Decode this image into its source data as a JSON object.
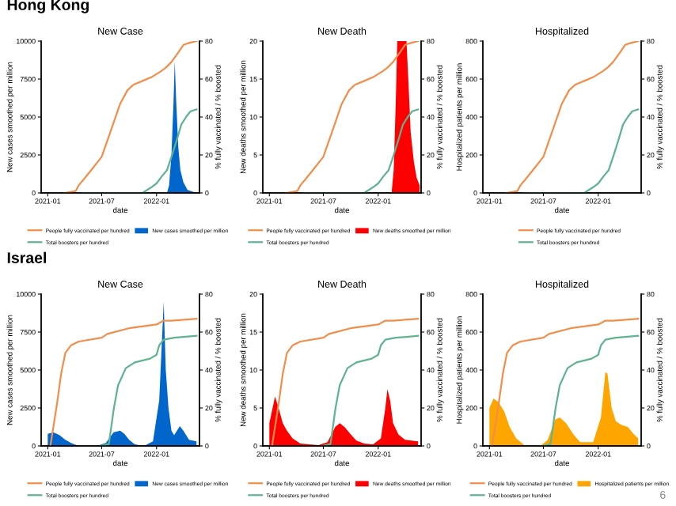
{
  "chart_data": [
    {
      "type": "area",
      "title": "New Case",
      "annotations": [
        "Hong Kong"
      ],
      "xlabel": "date",
      "ylabel": "New cases smoothed per million",
      "y2label": "% fully vaccinated / % boosted",
      "xlim": [
        "2020-12-10",
        "2022-05-25"
      ],
      "xticks": [
        "2021-01",
        "2021-07",
        "2022-01"
      ],
      "ylim": [
        0,
        10000
      ],
      "yticks": [
        0,
        2500,
        5000,
        7500,
        10000
      ],
      "y2lim": [
        0,
        80
      ],
      "y2ticks": [
        0,
        20,
        40,
        60,
        80
      ],
      "legend": "bottom",
      "grid": false,
      "series": [
        {
          "name": "New cases smoothed per million",
          "color": "#0066cc",
          "x": [
            "2021-01-01",
            "2022-02-05",
            "2022-02-12",
            "2022-02-20",
            "2022-02-27",
            "2022-03-03",
            "2022-03-08",
            "2022-03-15",
            "2022-03-22",
            "2022-04-01",
            "2022-04-15",
            "2022-05-15"
          ],
          "values": [
            0,
            0,
            500,
            2500,
            6000,
            8700,
            6000,
            3000,
            1500,
            700,
            200,
            0
          ]
        },
        {
          "name": "People fully vaccinated per hundred",
          "type": "line",
          "axis": "y2",
          "color": "#f28e4b",
          "x": [
            "2021-02-26",
            "2021-04-05",
            "2021-04-15",
            "2021-05-01",
            "2021-06-01",
            "2021-07-01",
            "2021-08-01",
            "2021-09-01",
            "2021-09-25",
            "2021-10-15",
            "2021-11-15",
            "2021-12-15",
            "2022-01-15",
            "2022-02-01",
            "2022-02-20",
            "2022-03-15",
            "2022-04-01",
            "2022-04-20",
            "2022-05-15"
          ],
          "values": [
            0,
            1,
            4,
            7,
            13,
            19,
            33,
            47,
            54,
            57,
            59,
            61,
            64,
            66,
            69,
            74,
            78,
            79,
            80
          ]
        },
        {
          "name": "Total boosters per hundred",
          "type": "line",
          "axis": "y2",
          "color": "#5fb38f",
          "x": [
            "2021-04-25",
            "2021-11-15",
            "2021-12-15",
            "2022-01-01",
            "2022-01-20",
            "2022-02-05",
            "2022-02-20",
            "2022-03-10",
            "2022-03-25",
            "2022-04-10",
            "2022-04-25",
            "2022-05-15"
          ],
          "values": [
            0,
            0,
            3,
            5,
            9,
            12,
            19,
            28,
            36,
            40,
            43,
            44
          ]
        }
      ]
    },
    {
      "type": "area",
      "title": "New Death",
      "xlabel": "date",
      "ylabel": "New deaths smoothed per million",
      "y2label": "% fully vaccinated / % boosted",
      "xlim": [
        "2020-12-10",
        "2022-05-25"
      ],
      "xticks": [
        "2021-01",
        "2021-07",
        "2022-01"
      ],
      "ylim": [
        0,
        20
      ],
      "yticks": [
        0,
        5,
        10,
        15,
        20
      ],
      "y2lim": [
        0,
        80
      ],
      "y2ticks": [
        0,
        20,
        40,
        60,
        80
      ],
      "legend": "bottom",
      "grid": false,
      "series": [
        {
          "name": "New deaths smoothed per million",
          "color": "#ff0000",
          "x": [
            "2021-01-01",
            "2022-02-15",
            "2022-02-22",
            "2022-03-01",
            "2022-03-06",
            "2022-04-06",
            "2022-04-12",
            "2022-04-20",
            "2022-05-01",
            "2022-05-10",
            "2022-05-20"
          ],
          "values": [
            0,
            0,
            3,
            12,
            20,
            20,
            15,
            8,
            4,
            2,
            1
          ]
        },
        {
          "name": "People fully vaccinated per hundred",
          "type": "line",
          "axis": "y2",
          "color": "#f28e4b",
          "x": [
            "2021-02-26",
            "2021-04-05",
            "2021-04-15",
            "2021-05-01",
            "2021-06-01",
            "2021-07-01",
            "2021-08-01",
            "2021-09-01",
            "2021-09-25",
            "2021-10-15",
            "2021-11-15",
            "2021-12-15",
            "2022-01-15",
            "2022-02-01",
            "2022-02-20",
            "2022-03-15",
            "2022-04-01",
            "2022-04-20",
            "2022-05-15"
          ],
          "values": [
            0,
            1,
            4,
            7,
            13,
            19,
            33,
            47,
            54,
            57,
            59,
            61,
            64,
            66,
            69,
            74,
            78,
            79,
            80
          ]
        },
        {
          "name": "Total boosters per hundred",
          "type": "line",
          "axis": "y2",
          "color": "#5fb38f",
          "x": [
            "2021-04-25",
            "2021-11-15",
            "2021-12-15",
            "2022-01-01",
            "2022-01-20",
            "2022-02-05",
            "2022-02-20",
            "2022-03-10",
            "2022-03-25",
            "2022-04-10",
            "2022-04-25",
            "2022-05-15"
          ],
          "values": [
            0,
            0,
            3,
            5,
            9,
            12,
            19,
            28,
            36,
            40,
            43,
            44
          ]
        }
      ]
    },
    {
      "type": "line",
      "title": "Hospitalized",
      "xlabel": "date",
      "ylabel": "Hospitalized patients per million",
      "y2label": "% fully vaccinated / % boosted",
      "xlim": [
        "2020-12-10",
        "2022-05-25"
      ],
      "xticks": [
        "2021-01",
        "2021-07",
        "2022-01"
      ],
      "ylim": [
        0,
        800
      ],
      "yticks": [
        0,
        200,
        400,
        600,
        800
      ],
      "y2lim": [
        0,
        80
      ],
      "y2ticks": [
        0,
        20,
        40,
        60,
        80
      ],
      "legend": "bottom",
      "grid": false,
      "series": [
        {
          "name": "People fully vaccinated per hundred",
          "axis": "y2",
          "color": "#f28e4b",
          "x": [
            "2021-02-26",
            "2021-04-05",
            "2021-04-15",
            "2021-05-01",
            "2021-06-01",
            "2021-07-01",
            "2021-08-01",
            "2021-09-01",
            "2021-09-25",
            "2021-10-15",
            "2021-11-15",
            "2021-12-15",
            "2022-01-15",
            "2022-02-01",
            "2022-02-20",
            "2022-03-15",
            "2022-04-01",
            "2022-04-20",
            "2022-05-15"
          ],
          "values": [
            0,
            1,
            4,
            7,
            13,
            19,
            33,
            47,
            54,
            57,
            59,
            61,
            64,
            66,
            69,
            74,
            78,
            79,
            80
          ]
        },
        {
          "name": "Total boosters per hundred",
          "axis": "y2",
          "color": "#5fb38f",
          "x": [
            "2021-04-25",
            "2021-11-15",
            "2021-12-15",
            "2022-01-01",
            "2022-01-20",
            "2022-02-05",
            "2022-02-20",
            "2022-03-10",
            "2022-03-25",
            "2022-04-10",
            "2022-04-25",
            "2022-05-15"
          ],
          "values": [
            0,
            0,
            3,
            5,
            9,
            12,
            19,
            28,
            36,
            40,
            43,
            44
          ]
        }
      ]
    },
    {
      "type": "area",
      "title": "New Case",
      "annotations": [
        "Israel"
      ],
      "xlabel": "date",
      "ylabel": "New cases smoothed per million",
      "y2label": "% fully vaccinated / % boosted",
      "xlim": [
        "2020-12-10",
        "2022-05-25"
      ],
      "xticks": [
        "2021-01",
        "2021-07",
        "2022-01"
      ],
      "ylim": [
        0,
        10000
      ],
      "yticks": [
        0,
        2500,
        5000,
        7500,
        10000
      ],
      "y2lim": [
        0,
        80
      ],
      "y2ticks": [
        0,
        20,
        40,
        60,
        80
      ],
      "legend": "bottom",
      "grid": false,
      "series": [
        {
          "name": "New cases smoothed per million",
          "color": "#0066cc",
          "x": [
            "2021-01-01",
            "2021-01-20",
            "2021-02-10",
            "2021-03-01",
            "2021-03-20",
            "2021-04-15",
            "2021-06-15",
            "2021-07-15",
            "2021-08-10",
            "2021-09-01",
            "2021-09-15",
            "2021-10-01",
            "2021-10-20",
            "2021-11-20",
            "2021-12-20",
            "2022-01-10",
            "2022-01-25",
            "2022-02-01",
            "2022-02-10",
            "2022-02-20",
            "2022-03-01",
            "2022-03-20",
            "2022-04-01",
            "2022-04-20",
            "2022-05-15"
          ],
          "values": [
            800,
            900,
            700,
            400,
            200,
            0,
            0,
            200,
            900,
            1000,
            800,
            400,
            100,
            0,
            300,
            3000,
            9500,
            5000,
            2500,
            1000,
            700,
            1300,
            1000,
            400,
            300
          ]
        },
        {
          "name": "People fully vaccinated per hundred",
          "type": "line",
          "axis": "y2",
          "color": "#f28e4b",
          "x": [
            "2021-01-10",
            "2021-01-31",
            "2021-02-15",
            "2021-03-01",
            "2021-03-20",
            "2021-04-15",
            "2021-07-01",
            "2021-07-20",
            "2021-09-30",
            "2022-01-01",
            "2022-01-25",
            "2022-02-20",
            "2022-05-15"
          ],
          "values": [
            0,
            21,
            38,
            49,
            53,
            55,
            57,
            59,
            62,
            64,
            66,
            66,
            67
          ]
        },
        {
          "name": "Total boosters per hundred",
          "type": "line",
          "axis": "y2",
          "color": "#5fb38f",
          "x": [
            "2021-06-28",
            "2021-07-25",
            "2021-08-11",
            "2021-08-25",
            "2021-09-20",
            "2021-10-20",
            "2021-12-10",
            "2022-01-01",
            "2022-01-10",
            "2022-01-25",
            "2022-03-01",
            "2022-05-15"
          ],
          "values": [
            0,
            1,
            20,
            32,
            41,
            44,
            46,
            48,
            53,
            56,
            57,
            58
          ]
        }
      ]
    },
    {
      "type": "area",
      "title": "New Death",
      "xlabel": "date",
      "ylabel": "New deaths smoothed per million",
      "y2label": "% fully vaccinated / % boosted",
      "xlim": [
        "2020-12-10",
        "2022-05-25"
      ],
      "xticks": [
        "2021-01",
        "2021-07",
        "2022-01"
      ],
      "ylim": [
        0,
        20
      ],
      "yticks": [
        0,
        5,
        10,
        15,
        20
      ],
      "y2lim": [
        0,
        80
      ],
      "y2ticks": [
        0,
        20,
        40,
        60,
        80
      ],
      "legend": "bottom",
      "grid": false,
      "series": [
        {
          "name": "New deaths smoothed per million",
          "color": "#ff0000",
          "x": [
            "2021-01-01",
            "2021-01-20",
            "2021-02-01",
            "2021-02-15",
            "2021-03-01",
            "2021-03-20",
            "2021-04-15",
            "2021-06-15",
            "2021-07-15",
            "2021-08-10",
            "2021-08-25",
            "2021-09-10",
            "2021-10-01",
            "2021-10-20",
            "2021-11-15",
            "2021-12-15",
            "2022-01-10",
            "2022-01-25",
            "2022-02-01",
            "2022-02-10",
            "2022-02-20",
            "2022-03-10",
            "2022-04-01",
            "2022-05-15"
          ],
          "values": [
            3,
            6.5,
            5,
            3,
            2,
            1,
            0.3,
            0.1,
            0.5,
            2.5,
            3,
            2.5,
            1.5,
            0.7,
            0.3,
            0.2,
            1,
            5,
            7.5,
            6,
            3,
            1.5,
            0.8,
            0.6
          ]
        },
        {
          "name": "People fully vaccinated per hundred",
          "type": "line",
          "axis": "y2",
          "color": "#f28e4b",
          "x": [
            "2021-01-10",
            "2021-01-31",
            "2021-02-15",
            "2021-03-01",
            "2021-03-20",
            "2021-04-15",
            "2021-07-01",
            "2021-07-20",
            "2021-09-30",
            "2022-01-01",
            "2022-01-25",
            "2022-02-20",
            "2022-05-15"
          ],
          "values": [
            0,
            21,
            38,
            49,
            53,
            55,
            57,
            59,
            62,
            64,
            66,
            66,
            67
          ]
        },
        {
          "name": "Total boosters per hundred",
          "type": "line",
          "axis": "y2",
          "color": "#5fb38f",
          "x": [
            "2021-06-28",
            "2021-07-25",
            "2021-08-11",
            "2021-08-25",
            "2021-09-20",
            "2021-10-20",
            "2021-12-10",
            "2022-01-01",
            "2022-01-10",
            "2022-01-25",
            "2022-03-01",
            "2022-05-15"
          ],
          "values": [
            0,
            1,
            20,
            32,
            41,
            44,
            46,
            48,
            53,
            56,
            57,
            58
          ]
        }
      ]
    },
    {
      "type": "area",
      "title": "Hospitalized",
      "annotations": [
        "6"
      ],
      "xlabel": "date",
      "ylabel": "Hospitalized patients per million",
      "y2label": "% fully vaccinated / % boosted",
      "xlim": [
        "2020-12-10",
        "2022-05-25"
      ],
      "xticks": [
        "2021-01",
        "2021-07",
        "2022-01"
      ],
      "ylim": [
        0,
        800
      ],
      "yticks": [
        0,
        200,
        400,
        600,
        800
      ],
      "y2lim": [
        0,
        80
      ],
      "y2ticks": [
        0,
        20,
        40,
        60,
        80
      ],
      "legend": "bottom",
      "grid": false,
      "series": [
        {
          "name": "Hospitalized patients per million",
          "color": "#ffa500",
          "x": [
            "2021-01-01",
            "2021-01-15",
            "2021-02-01",
            "2021-02-20",
            "2021-03-10",
            "2021-04-01",
            "2021-05-01",
            "2021-06-20",
            "2021-07-15",
            "2021-08-10",
            "2021-08-25",
            "2021-09-15",
            "2021-10-10",
            "2021-11-01",
            "2021-12-15",
            "2022-01-10",
            "2022-01-25",
            "2022-02-01",
            "2022-02-15",
            "2022-03-01",
            "2022-03-20",
            "2022-04-10",
            "2022-05-01",
            "2022-05-15"
          ],
          "values": [
            200,
            250,
            230,
            180,
            100,
            40,
            0,
            0,
            30,
            140,
            150,
            120,
            60,
            20,
            20,
            150,
            390,
            380,
            200,
            130,
            110,
            100,
            60,
            40
          ]
        },
        {
          "name": "People fully vaccinated per hundred",
          "type": "line",
          "axis": "y2",
          "color": "#f28e4b",
          "x": [
            "2021-01-10",
            "2021-01-31",
            "2021-02-15",
            "2021-03-01",
            "2021-03-20",
            "2021-04-15",
            "2021-07-01",
            "2021-07-20",
            "2021-09-30",
            "2022-01-01",
            "2022-01-25",
            "2022-02-20",
            "2022-05-15"
          ],
          "values": [
            0,
            21,
            38,
            49,
            53,
            55,
            57,
            59,
            62,
            64,
            66,
            66,
            67
          ]
        },
        {
          "name": "Total boosters per hundred",
          "type": "line",
          "axis": "y2",
          "color": "#5fb38f",
          "x": [
            "2021-06-28",
            "2021-07-25",
            "2021-08-11",
            "2021-08-25",
            "2021-09-20",
            "2021-10-20",
            "2021-12-10",
            "2022-01-01",
            "2022-01-10",
            "2022-01-25",
            "2022-03-01",
            "2022-05-15"
          ],
          "values": [
            0,
            1,
            20,
            32,
            41,
            44,
            46,
            48,
            53,
            56,
            57,
            58
          ]
        }
      ]
    }
  ]
}
